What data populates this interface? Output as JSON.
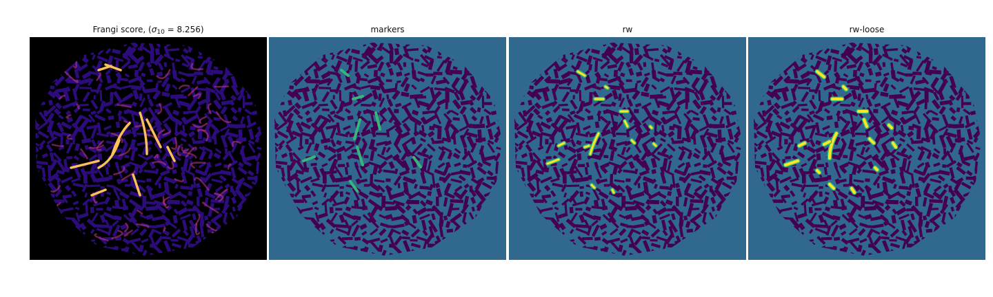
{
  "panels": [
    {
      "title_prefix": "Frangi score, (",
      "title_symbol": "σ",
      "title_subscript": "10",
      "title_suffix": " = 8.256)",
      "image": "vessel-filter-map"
    },
    {
      "title": "markers",
      "image": "marker-segmentation"
    },
    {
      "title": "rw",
      "image": "random-walker-result"
    },
    {
      "title": "rw-loose",
      "image": "random-walker-loose-result"
    }
  ],
  "colors": {
    "frangi_background": "#000000",
    "frangi_low": "#2c0c7a",
    "frangi_mid": "#c93a8c",
    "frangi_high": "#fcc05a",
    "label_background": "#31688e",
    "label_dark": "#440154",
    "label_marker": "#35b779",
    "label_vessel": "#fde725"
  }
}
